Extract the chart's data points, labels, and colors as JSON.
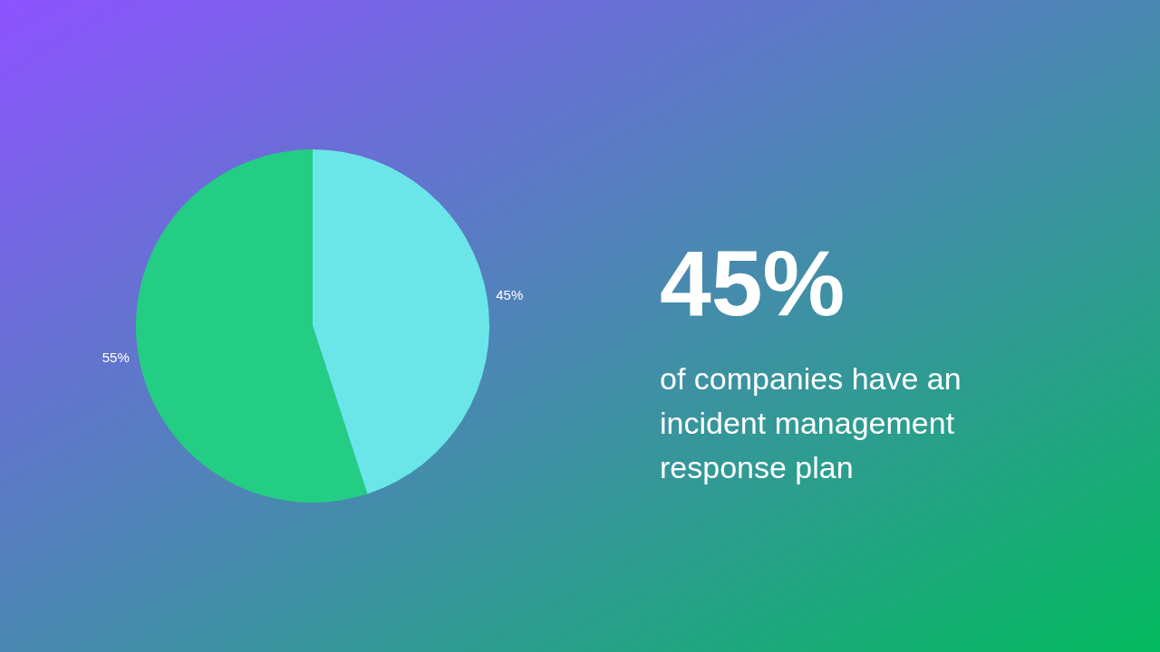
{
  "chart_data": {
    "type": "pie",
    "title": "45%",
    "subtitle": "of companies have an incident management response plan",
    "categories": [
      null,
      null
    ],
    "values": [
      45,
      55
    ],
    "colors": [
      "#6ae6e8",
      "#24cd84"
    ],
    "value_labels": [
      "45%",
      "55%"
    ]
  }
}
